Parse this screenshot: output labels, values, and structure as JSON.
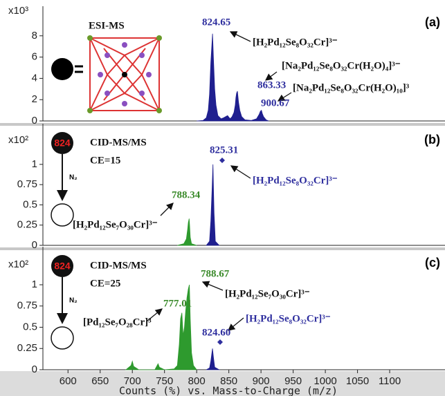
{
  "chart_data": [
    {
      "type": "area",
      "panel_label": "(a)",
      "method": "ESI-MS",
      "y_multiplier": "x10³",
      "x": [
        800,
        810,
        815,
        818,
        820,
        821,
        822,
        823,
        824,
        824.65,
        825.3,
        826,
        827,
        828,
        830,
        833,
        838,
        842,
        848,
        852,
        855,
        858,
        860,
        861,
        862,
        863.33,
        864,
        865,
        867,
        870,
        875,
        885,
        893,
        897,
        899,
        900.67,
        902,
        904,
        908,
        912
      ],
      "series": [
        {
          "color": "#1f1f8f",
          "values": [
            0,
            0.05,
            0.3,
            1,
            2.5,
            4,
            5.5,
            6.5,
            7.5,
            8.2,
            7.2,
            6,
            4.5,
            3,
            1.5,
            0.5,
            0.2,
            0.3,
            0.5,
            0.2,
            0.4,
            0.8,
            1.5,
            2.2,
            2.6,
            2.8,
            2.4,
            1.8,
            1,
            0.4,
            0.1,
            0.05,
            0.2,
            0.6,
            0.9,
            1.0,
            0.7,
            0.4,
            0.1,
            0
          ]
        }
      ],
      "xlim": [
        561,
        1186
      ],
      "ylim": [
        0,
        10
      ],
      "yticks": [
        0,
        2,
        4,
        6,
        8
      ],
      "annotations": [
        {
          "text": "824.65",
          "color": "#2e2e9e"
        },
        {
          "text": "[H₂Pd₁₂Se₈O₃₂Cr]³⁻",
          "color": "#111111"
        },
        {
          "text": "[Na₂Pd₁₂Se₈O₃₂Cr(H₂O)₄]³⁻",
          "color": "#111111"
        },
        {
          "text": "863.33",
          "color": "#2e2e9e"
        },
        {
          "text": "[Na₂Pd₁₂Se₈O₃₂Cr(H₂O)₁₀]³",
          "color": "#111111"
        },
        {
          "text": "900.67",
          "color": "#2e2e9e"
        }
      ]
    },
    {
      "type": "area",
      "panel_label": "(b)",
      "method": "CID-MS/MS",
      "condition": "CE=15",
      "precursor": "824",
      "gas": "N₂",
      "y_multiplier": "x10²",
      "x": [
        770,
        780,
        784,
        786,
        787,
        788.34,
        789,
        790,
        792,
        800,
        815,
        820,
        822,
        824,
        825.31,
        826,
        827,
        829,
        835
      ],
      "series": [
        {
          "color": "#2e9a2e",
          "values": [
            0,
            0.02,
            0.08,
            0.2,
            0.28,
            0.33,
            0.25,
            0.1,
            0.02,
            0,
            null,
            null,
            null,
            null,
            null,
            null,
            null,
            null,
            null
          ]
        },
        {
          "color": "#1f1f8f",
          "values": [
            null,
            null,
            null,
            null,
            null,
            null,
            null,
            null,
            null,
            null,
            0,
            0.05,
            0.3,
            0.7,
            1.0,
            0.75,
            0.4,
            0.05,
            0
          ]
        }
      ],
      "xlim": [
        561,
        1186
      ],
      "ylim": [
        0,
        1.4
      ],
      "yticks": [
        0,
        0.25,
        0.5,
        0.75,
        1
      ],
      "annotations": [
        {
          "text": "825.31",
          "color": "#2e2e9e"
        },
        {
          "text": "[H₂Pd₁₂Se₈O₃₂Cr]³⁻",
          "color": "#2e2e9e"
        },
        {
          "text": "788.34",
          "color": "#3a8a2a"
        },
        {
          "text": "[H₂Pd₁₂Se₇O₃₀Cr]³⁻",
          "color": "#111111"
        }
      ]
    },
    {
      "type": "area",
      "panel_label": "(c)",
      "method": "CID-MS/MS",
      "condition": "CE=25",
      "precursor": "824",
      "gas": "N₂",
      "y_multiplier": "x10²",
      "x": [
        690,
        698,
        700,
        702,
        710,
        735,
        740,
        742,
        750,
        765,
        770,
        773,
        775,
        777.01,
        779,
        781,
        783,
        785,
        787,
        788.67,
        790,
        792,
        795,
        800,
        815,
        820,
        822,
        824.6,
        826,
        828,
        835
      ],
      "series": [
        {
          "color": "#2e9a2e",
          "values": [
            0,
            0.05,
            0.1,
            0.04,
            0,
            0,
            0.07,
            0.03,
            0,
            0.01,
            0.05,
            0.3,
            0.6,
            0.67,
            0.4,
            0.5,
            0.7,
            0.85,
            0.95,
            1.0,
            0.6,
            0.2,
            0.05,
            0,
            null,
            null,
            null,
            null,
            null,
            null,
            null
          ]
        },
        {
          "color": "#1f1f8f",
          "values": [
            null,
            null,
            null,
            null,
            null,
            null,
            null,
            null,
            null,
            null,
            null,
            null,
            null,
            null,
            null,
            null,
            null,
            null,
            null,
            null,
            null,
            null,
            null,
            null,
            0,
            0.02,
            0.1,
            0.25,
            0.15,
            0.03,
            0
          ]
        }
      ],
      "xlim": [
        561,
        1186
      ],
      "ylim": [
        0,
        1.35
      ],
      "yticks": [
        0,
        0.25,
        0.5,
        0.75,
        1
      ],
      "xticks": [
        600,
        650,
        700,
        750,
        800,
        850,
        900,
        950,
        1000,
        1050,
        1100
      ],
      "x_label": "Counts (%) vs. Mass-to-Charge (m/z)",
      "annotations": [
        {
          "text": "788.67",
          "color": "#3a8a2a"
        },
        {
          "text": "[H₂Pd₁₂Se₇O₃₀Cr]³⁻",
          "color": "#111111"
        },
        {
          "text": "777.01",
          "color": "#3a8a2a"
        },
        {
          "text": "[Pd₁₂Se₇O₂₈Cr]³",
          "color": "#111111"
        },
        {
          "text": "[H₂Pd₁₂Se₈O₃₂Cr]³⁻",
          "color": "#2e2e9e"
        },
        {
          "text": "824.60",
          "color": "#2e2e9e"
        }
      ]
    }
  ]
}
